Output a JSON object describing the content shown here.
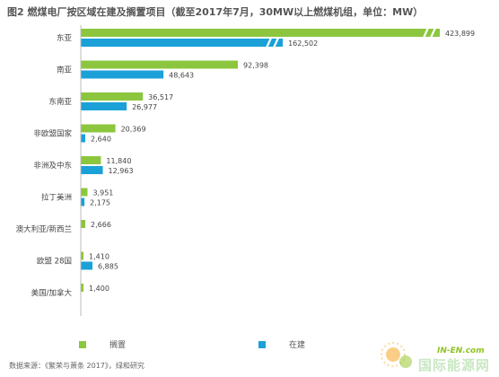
{
  "title": "图2 燃煤电厂按区域在建及搁置项目（截至2017年7月，30MW以上燃煤机组，单位：MW）",
  "source": "数据来源：《繁荣与萧条 2017》，绿和研究",
  "watermark": {
    "en": "IN-EN.com",
    "cn": "国际能源网"
  },
  "colors": {
    "shelved": "#8cc63e",
    "construction": "#1ba1d8",
    "axis": "#bbbbbb"
  },
  "legend": [
    {
      "label": "搁置",
      "color": "#8cc63e"
    },
    {
      "label": "在建",
      "color": "#1ba1d8"
    }
  ],
  "chart_data": {
    "type": "bar",
    "orientation": "horizontal",
    "title": "图2 燃煤电厂按区域在建及搁置项目（截至2017年7月，30MW以上燃煤机组，单位：MW）",
    "categories": [
      "东亚",
      "南亚",
      "东南亚",
      "非欧盟国家",
      "非洲及中东",
      "拉丁美洲",
      "澳大利亚/新西兰",
      "欧盟 28国",
      "美国/加拿大"
    ],
    "series": [
      {
        "name": "搁置",
        "values": [
          423899,
          92398,
          36517,
          20369,
          11840,
          3951,
          2666,
          1410,
          1400
        ]
      },
      {
        "name": "在建",
        "values": [
          162502,
          48643,
          26977,
          2640,
          12963,
          2175,
          null,
          6885,
          null
        ]
      }
    ],
    "value_labels": [
      [
        "423,899",
        "162,502"
      ],
      [
        "92,398",
        "48,643"
      ],
      [
        "36,517",
        "26,977"
      ],
      [
        "20,369",
        "2,640"
      ],
      [
        "11,840",
        "12,963"
      ],
      [
        "3,951",
        "2,175"
      ],
      [
        "2,666",
        ""
      ],
      [
        "1,410",
        "6,885"
      ],
      [
        "1,400",
        ""
      ]
    ],
    "axis_break": true,
    "legend_position": "bottom",
    "grid": false
  }
}
